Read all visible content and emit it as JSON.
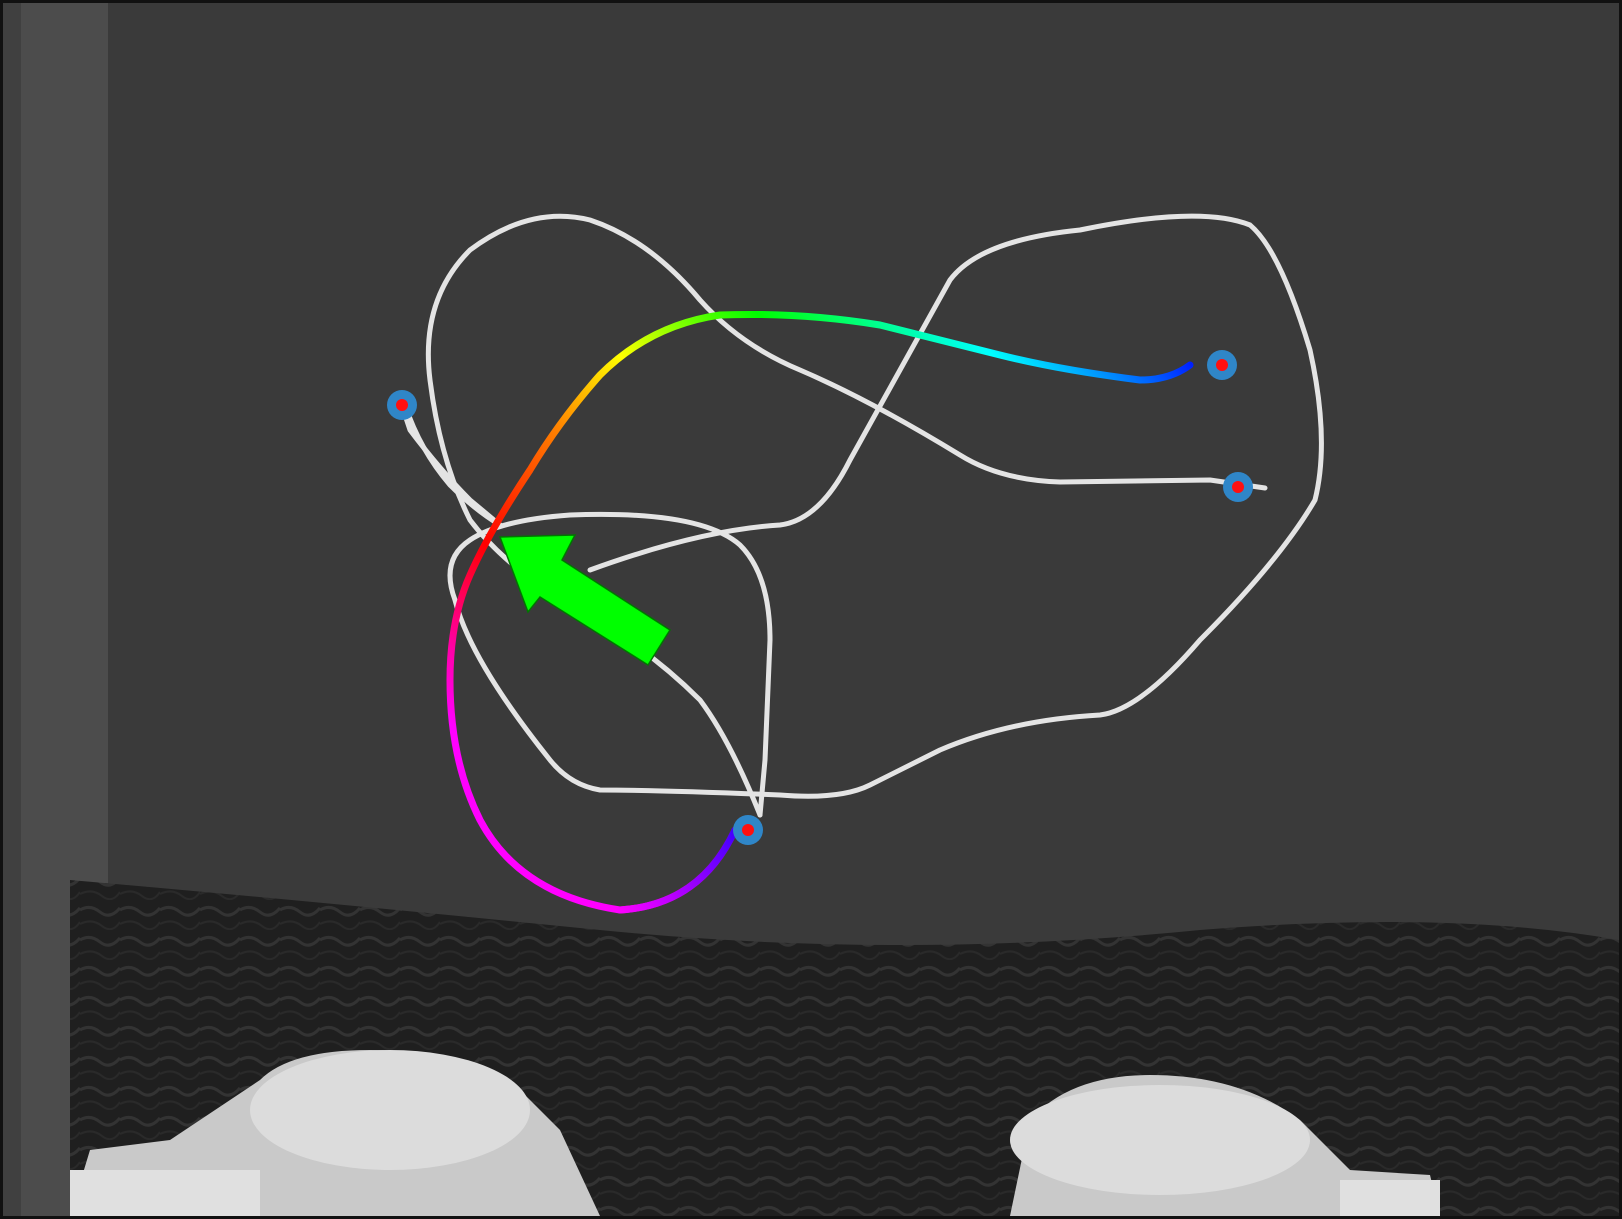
{
  "scene": {
    "description_free": true,
    "colors": {
      "background_table": "#3a3a3a",
      "left_strip": "#4a4a4a",
      "cable": "#e6e6e6",
      "arrow": "#00ff00",
      "marker_ring": "#2f86c8",
      "marker_dot": "#ff1010",
      "cloth": "#222222",
      "robot_base": "#d8d8d8"
    },
    "highlighted_cable_gradient": [
      "#ff00ff",
      "#ff0000",
      "#ff8000",
      "#ffff00",
      "#00ff00",
      "#00ffff",
      "#0000ff"
    ],
    "markers": [
      {
        "id": "endpoint-1"
      },
      {
        "id": "endpoint-2"
      },
      {
        "id": "endpoint-3"
      },
      {
        "id": "endpoint-4"
      }
    ],
    "icons": {
      "arrow": "push-direction-arrow-icon",
      "marker": "endpoint-marker-icon"
    }
  }
}
